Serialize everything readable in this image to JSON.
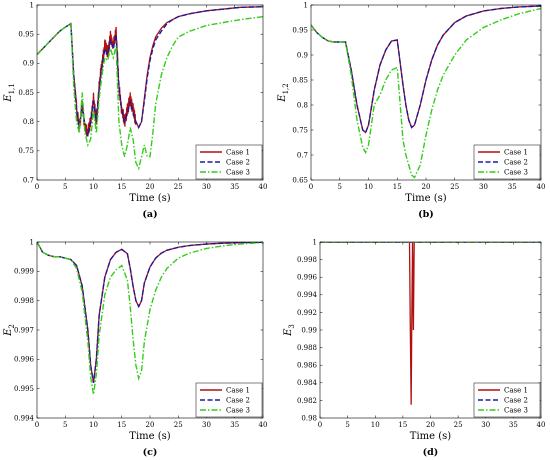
{
  "chart_data": [
    {
      "type": "line",
      "panel_label": "(a)",
      "xlabel": "Time (s)",
      "ylabel": "E",
      "ylabel_sub": "1,1",
      "xlim": [
        0,
        40
      ],
      "ylim": [
        0.7,
        1
      ],
      "xticks": [
        0,
        5,
        10,
        15,
        20,
        25,
        30,
        35,
        40
      ],
      "yticks": [
        0.7,
        0.75,
        0.8,
        0.85,
        0.9,
        0.95,
        1
      ],
      "ytick_labels": [
        "0.7",
        "0.75",
        "0.8",
        "0.85",
        "0.9",
        "0.95",
        "1"
      ],
      "legend_position": "bottom-right",
      "series": [
        {
          "name": "Case 1",
          "color": "#b01010",
          "dash": "solid",
          "noise": 0.012,
          "x": [
            0,
            1,
            2,
            3,
            4,
            5,
            6,
            6.5,
            7,
            7.5,
            8,
            8.5,
            9,
            9.5,
            10,
            10.5,
            11,
            11.5,
            12,
            12.5,
            13,
            13.5,
            14,
            14.5,
            15,
            15.5,
            16,
            16.5,
            17,
            17.5,
            18,
            18.5,
            19,
            19.5,
            20,
            20.5,
            21,
            22,
            23,
            24,
            25,
            27,
            30,
            33,
            36,
            40
          ],
          "y": [
            0.915,
            0.925,
            0.935,
            0.945,
            0.955,
            0.962,
            0.968,
            0.88,
            0.82,
            0.79,
            0.83,
            0.79,
            0.78,
            0.8,
            0.84,
            0.8,
            0.86,
            0.9,
            0.93,
            0.92,
            0.945,
            0.93,
            0.955,
            0.86,
            0.82,
            0.8,
            0.82,
            0.84,
            0.82,
            0.8,
            0.79,
            0.8,
            0.84,
            0.88,
            0.91,
            0.93,
            0.945,
            0.96,
            0.97,
            0.975,
            0.98,
            0.985,
            0.99,
            0.993,
            0.996,
            0.997
          ]
        },
        {
          "name": "Case 2",
          "color": "#1a1aa0",
          "dash": "dashed",
          "noise": 0,
          "x": [
            0,
            1,
            2,
            3,
            4,
            5,
            6,
            6.5,
            7,
            7.5,
            8,
            8.5,
            9,
            9.5,
            10,
            10.5,
            11,
            11.5,
            12,
            12.5,
            13,
            13.5,
            14,
            14.5,
            15,
            15.5,
            16,
            16.5,
            17,
            17.5,
            18,
            18.5,
            19,
            19.5,
            20,
            20.5,
            21,
            22,
            23,
            24,
            25,
            27,
            30,
            33,
            36,
            40
          ],
          "y": [
            0.915,
            0.925,
            0.935,
            0.945,
            0.955,
            0.962,
            0.968,
            0.88,
            0.82,
            0.79,
            0.83,
            0.79,
            0.775,
            0.8,
            0.835,
            0.8,
            0.855,
            0.895,
            0.925,
            0.915,
            0.94,
            0.925,
            0.95,
            0.86,
            0.82,
            0.8,
            0.815,
            0.835,
            0.815,
            0.8,
            0.79,
            0.8,
            0.835,
            0.875,
            0.905,
            0.925,
            0.94,
            0.955,
            0.968,
            0.975,
            0.98,
            0.985,
            0.99,
            0.993,
            0.996,
            0.997
          ]
        },
        {
          "name": "Case 3",
          "color": "#33cc1a",
          "dash": "dashdot",
          "noise": 0,
          "x": [
            0,
            1,
            2,
            3,
            4,
            5,
            6,
            6.5,
            7,
            7.5,
            8,
            8.5,
            9,
            9.5,
            10,
            10.5,
            11,
            11.5,
            12,
            12.5,
            13,
            13.5,
            14,
            14.5,
            15,
            15.5,
            16,
            16.5,
            17,
            17.5,
            18,
            18.5,
            19,
            19.5,
            20,
            20.5,
            21,
            22,
            23,
            24,
            25,
            27,
            30,
            33,
            36,
            40
          ],
          "y": [
            0.915,
            0.925,
            0.935,
            0.945,
            0.955,
            0.962,
            0.968,
            0.86,
            0.8,
            0.78,
            0.85,
            0.78,
            0.76,
            0.77,
            0.82,
            0.78,
            0.84,
            0.88,
            0.91,
            0.905,
            0.925,
            0.91,
            0.93,
            0.8,
            0.76,
            0.74,
            0.76,
            0.79,
            0.77,
            0.73,
            0.72,
            0.74,
            0.76,
            0.74,
            0.74,
            0.78,
            0.83,
            0.88,
            0.91,
            0.93,
            0.945,
            0.955,
            0.965,
            0.97,
            0.975,
            0.98
          ]
        }
      ]
    },
    {
      "type": "line",
      "panel_label": "(b)",
      "xlabel": "Time (s)",
      "ylabel": "E",
      "ylabel_sub": "1,2",
      "xlim": [
        0,
        40
      ],
      "ylim": [
        0.65,
        1
      ],
      "xticks": [
        0,
        5,
        10,
        15,
        20,
        25,
        30,
        35,
        40
      ],
      "yticks": [
        0.65,
        0.7,
        0.75,
        0.8,
        0.85,
        0.9,
        0.95,
        1
      ],
      "ytick_labels": [
        "0.65",
        "0.7",
        "0.75",
        "0.8",
        "0.85",
        "0.9",
        "0.95",
        "1"
      ],
      "legend_position": "bottom-right",
      "series": [
        {
          "name": "Case 1",
          "color": "#b01010",
          "dash": "solid",
          "noise": 0,
          "x": [
            0,
            1,
            2,
            3,
            4,
            5,
            6,
            7,
            8,
            9,
            9.5,
            10,
            11,
            12,
            13,
            14,
            15,
            16,
            16.5,
            17,
            17.5,
            18,
            19,
            20,
            21,
            22,
            23,
            25,
            27,
            30,
            33,
            36,
            40
          ],
          "y": [
            0.96,
            0.945,
            0.935,
            0.928,
            0.926,
            0.926,
            0.926,
            0.87,
            0.8,
            0.75,
            0.745,
            0.76,
            0.83,
            0.88,
            0.91,
            0.928,
            0.93,
            0.84,
            0.8,
            0.77,
            0.755,
            0.76,
            0.8,
            0.85,
            0.89,
            0.92,
            0.94,
            0.965,
            0.978,
            0.988,
            0.993,
            0.996,
            0.998
          ]
        },
        {
          "name": "Case 2",
          "color": "#1a1aa0",
          "dash": "dashed",
          "noise": 0,
          "x": [
            0,
            1,
            2,
            3,
            4,
            5,
            6,
            7,
            8,
            9,
            9.5,
            10,
            11,
            12,
            13,
            14,
            15,
            16,
            16.5,
            17,
            17.5,
            18,
            19,
            20,
            21,
            22,
            23,
            25,
            27,
            30,
            33,
            36,
            40
          ],
          "y": [
            0.96,
            0.945,
            0.935,
            0.928,
            0.926,
            0.926,
            0.926,
            0.87,
            0.8,
            0.75,
            0.745,
            0.76,
            0.83,
            0.88,
            0.91,
            0.928,
            0.93,
            0.84,
            0.8,
            0.77,
            0.755,
            0.76,
            0.8,
            0.85,
            0.89,
            0.92,
            0.94,
            0.965,
            0.978,
            0.988,
            0.993,
            0.996,
            0.998
          ]
        },
        {
          "name": "Case 3",
          "color": "#33cc1a",
          "dash": "dashdot",
          "noise": 0,
          "x": [
            0,
            1,
            2,
            3,
            4,
            5,
            6,
            7,
            8,
            9,
            9.5,
            10,
            11,
            12,
            13,
            14,
            15,
            16,
            16.5,
            17,
            17.5,
            18,
            19,
            20,
            21,
            22,
            23,
            25,
            27,
            30,
            33,
            36,
            40
          ],
          "y": [
            0.96,
            0.945,
            0.935,
            0.928,
            0.926,
            0.926,
            0.926,
            0.86,
            0.77,
            0.715,
            0.705,
            0.72,
            0.8,
            0.82,
            0.85,
            0.87,
            0.875,
            0.73,
            0.7,
            0.68,
            0.66,
            0.655,
            0.68,
            0.74,
            0.79,
            0.83,
            0.86,
            0.9,
            0.93,
            0.955,
            0.97,
            0.982,
            0.993
          ]
        }
      ]
    },
    {
      "type": "line",
      "panel_label": "(c)",
      "xlabel": "Time (s)",
      "ylabel": "E",
      "ylabel_sub": "2",
      "xlim": [
        0,
        40
      ],
      "ylim": [
        0.994,
        1
      ],
      "xticks": [
        0,
        5,
        10,
        15,
        20,
        25,
        30,
        35,
        40
      ],
      "yticks": [
        0.994,
        0.995,
        0.996,
        0.997,
        0.998,
        0.999,
        1
      ],
      "ytick_labels": [
        "0.994",
        "0.995",
        "0.996",
        "0.997",
        "0.998",
        "0.999",
        "1"
      ],
      "legend_position": "bottom-right",
      "series": [
        {
          "name": "Case 1",
          "color": "#b01010",
          "dash": "solid",
          "noise": 0,
          "x": [
            0,
            1,
            2,
            3,
            4,
            5,
            6,
            7,
            8,
            9,
            9.5,
            10,
            10.5,
            11,
            12,
            13,
            14,
            15,
            16,
            16.5,
            17,
            17.5,
            18,
            18.5,
            19,
            20,
            21,
            22,
            23,
            25,
            27,
            30,
            33,
            36,
            40
          ],
          "y": [
            1.0,
            0.99965,
            0.99955,
            0.9995,
            0.9995,
            0.99945,
            0.9994,
            0.9992,
            0.9985,
            0.997,
            0.9958,
            0.9952,
            0.996,
            0.9975,
            0.9988,
            0.9994,
            0.99965,
            0.99975,
            0.9996,
            0.9991,
            0.9985,
            0.998,
            0.9978,
            0.998,
            0.9986,
            0.99915,
            0.99945,
            0.99962,
            0.99972,
            0.99982,
            0.99988,
            0.99993,
            0.99996,
            0.99998,
            0.99999
          ]
        },
        {
          "name": "Case 2",
          "color": "#1a1aa0",
          "dash": "dashed",
          "noise": 0,
          "x": [
            0,
            1,
            2,
            3,
            4,
            5,
            6,
            7,
            8,
            9,
            9.5,
            10,
            10.5,
            11,
            12,
            13,
            14,
            15,
            16,
            16.5,
            17,
            17.5,
            18,
            18.5,
            19,
            20,
            21,
            22,
            23,
            25,
            27,
            30,
            33,
            36,
            40
          ],
          "y": [
            1.0,
            0.99965,
            0.99955,
            0.9995,
            0.9995,
            0.99945,
            0.9994,
            0.9992,
            0.9985,
            0.997,
            0.9958,
            0.9952,
            0.996,
            0.9975,
            0.9988,
            0.9994,
            0.99965,
            0.99975,
            0.9996,
            0.9991,
            0.9985,
            0.998,
            0.9978,
            0.998,
            0.9986,
            0.99915,
            0.99945,
            0.99962,
            0.99972,
            0.99982,
            0.99988,
            0.99993,
            0.99996,
            0.99998,
            0.99999
          ]
        },
        {
          "name": "Case 3",
          "color": "#33cc1a",
          "dash": "dashdot",
          "noise": 0,
          "x": [
            0,
            1,
            2,
            3,
            4,
            5,
            6,
            7,
            8,
            9,
            9.5,
            10,
            10.5,
            11,
            12,
            13,
            14,
            15,
            16,
            16.5,
            17,
            17.5,
            18,
            18.5,
            19,
            20,
            21,
            22,
            23,
            25,
            27,
            30,
            33,
            36,
            40
          ],
          "y": [
            1.0,
            0.99965,
            0.99955,
            0.9995,
            0.9995,
            0.99945,
            0.9994,
            0.9991,
            0.9983,
            0.9966,
            0.9954,
            0.9948,
            0.9955,
            0.9968,
            0.9982,
            0.9988,
            0.99905,
            0.9992,
            0.9987,
            0.9978,
            0.9967,
            0.9958,
            0.99535,
            0.9956,
            0.9966,
            0.9977,
            0.99835,
            0.9988,
            0.9991,
            0.99945,
            0.99962,
            0.99978,
            0.99987,
            0.99993,
            0.99998
          ]
        }
      ]
    },
    {
      "type": "line",
      "panel_label": "(d)",
      "xlabel": "Time (s)",
      "ylabel": "E",
      "ylabel_sub": "3",
      "xlim": [
        0,
        40
      ],
      "ylim": [
        0.98,
        1
      ],
      "xticks": [
        0,
        5,
        10,
        15,
        20,
        25,
        30,
        35,
        40
      ],
      "yticks": [
        0.98,
        0.982,
        0.984,
        0.986,
        0.988,
        0.99,
        0.992,
        0.994,
        0.996,
        0.998,
        1
      ],
      "ytick_labels": [
        "0.98",
        "0.982",
        "0.984",
        "0.986",
        "0.988",
        "0.99",
        "0.992",
        "0.994",
        "0.996",
        "0.998",
        "1"
      ],
      "legend_position": "bottom-right",
      "series": [
        {
          "name": "Case 1",
          "color": "#b01010",
          "dash": "solid",
          "noise": 0,
          "x": [
            0,
            16.2,
            16.35,
            16.5,
            16.6,
            16.75,
            16.9,
            17.05,
            40
          ],
          "y": [
            1.0,
            1.0,
            0.99,
            0.9815,
            0.99,
            1.0,
            0.99,
            1.0,
            1.0
          ]
        },
        {
          "name": "Case 2",
          "color": "#1a1aa0",
          "dash": "dashed",
          "noise": 0,
          "x": [
            0,
            40
          ],
          "y": [
            1.0,
            1.0
          ]
        },
        {
          "name": "Case 3",
          "color": "#33cc1a",
          "dash": "dashdot",
          "noise": 0,
          "x": [
            0,
            40
          ],
          "y": [
            1.0,
            1.0
          ]
        }
      ]
    }
  ]
}
